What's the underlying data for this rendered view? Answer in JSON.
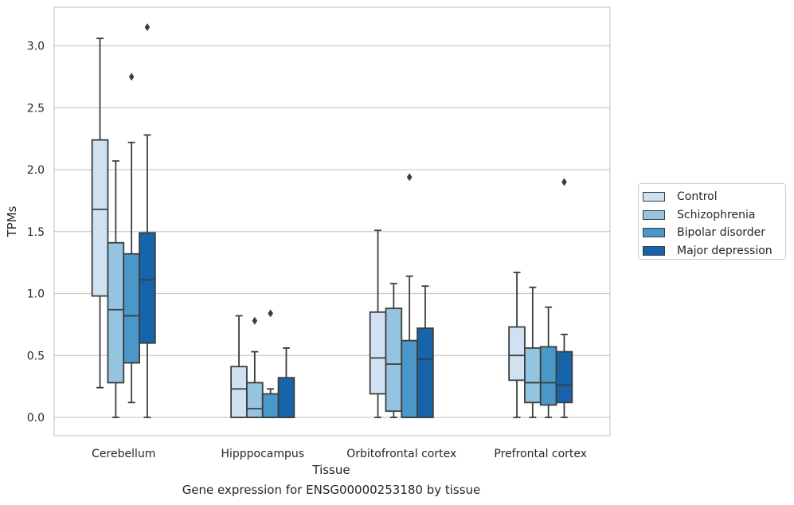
{
  "caption": "Gene expression for ENSG00000253180 by tissue",
  "chart_data": {
    "type": "box",
    "title": "",
    "xlabel": "Tissue",
    "ylabel": "TPMs",
    "ylim": [
      -0.15,
      3.3
    ],
    "yticks": [
      0.0,
      0.5,
      1.0,
      1.5,
      2.0,
      2.5,
      3.0
    ],
    "ytick_labels": [
      "0.0",
      "0.5",
      "1.0",
      "1.5",
      "2.0",
      "2.5",
      "3.0"
    ],
    "grid": "horizontal",
    "legend_position": "right",
    "categories": [
      "Cerebellum",
      "Hipppocampus",
      "Orbitofrontal cortex",
      "Prefrontal cortex"
    ],
    "series": [
      {
        "name": "Control",
        "color": "#d0e1f2",
        "boxes": [
          {
            "whisker_low": 0.24,
            "q1": 0.98,
            "median": 1.68,
            "q3": 2.24,
            "whisker_high": 3.06,
            "outliers": []
          },
          {
            "whisker_low": 0.0,
            "q1": 0.0,
            "median": 0.23,
            "q3": 0.41,
            "whisker_high": 0.82,
            "outliers": []
          },
          {
            "whisker_low": 0.0,
            "q1": 0.19,
            "median": 0.48,
            "q3": 0.85,
            "whisker_high": 1.51,
            "outliers": []
          },
          {
            "whisker_low": 0.0,
            "q1": 0.3,
            "median": 0.5,
            "q3": 0.73,
            "whisker_high": 1.17,
            "outliers": []
          }
        ]
      },
      {
        "name": "Schizophrenia",
        "color": "#94c4df",
        "boxes": [
          {
            "whisker_low": 0.0,
            "q1": 0.28,
            "median": 0.87,
            "q3": 1.41,
            "whisker_high": 2.07,
            "outliers": []
          },
          {
            "whisker_low": 0.0,
            "q1": 0.0,
            "median": 0.07,
            "q3": 0.28,
            "whisker_high": 0.53,
            "outliers": [
              0.78
            ]
          },
          {
            "whisker_low": 0.0,
            "q1": 0.05,
            "median": 0.43,
            "q3": 0.88,
            "whisker_high": 1.08,
            "outliers": []
          },
          {
            "whisker_low": 0.0,
            "q1": 0.12,
            "median": 0.28,
            "q3": 0.56,
            "whisker_high": 1.05,
            "outliers": []
          }
        ]
      },
      {
        "name": "Bipolar disorder",
        "color": "#4a98c9",
        "boxes": [
          {
            "whisker_low": 0.12,
            "q1": 0.44,
            "median": 0.82,
            "q3": 1.32,
            "whisker_high": 2.22,
            "outliers": [
              2.75
            ]
          },
          {
            "whisker_low": 0.0,
            "q1": 0.0,
            "median": 0.0,
            "q3": 0.19,
            "whisker_high": 0.23,
            "outliers": [
              0.84
            ]
          },
          {
            "whisker_low": 0.0,
            "q1": 0.0,
            "median": 0.0,
            "q3": 0.62,
            "whisker_high": 1.14,
            "outliers": [
              1.94
            ]
          },
          {
            "whisker_low": 0.0,
            "q1": 0.1,
            "median": 0.28,
            "q3": 0.57,
            "whisker_high": 0.89,
            "outliers": []
          }
        ]
      },
      {
        "name": "Major depression",
        "color": "#1764ab",
        "boxes": [
          {
            "whisker_low": 0.0,
            "q1": 0.6,
            "median": 1.11,
            "q3": 1.49,
            "whisker_high": 2.28,
            "outliers": [
              3.15
            ]
          },
          {
            "whisker_low": 0.0,
            "q1": 0.0,
            "median": 0.0,
            "q3": 0.32,
            "whisker_high": 0.56,
            "outliers": []
          },
          {
            "whisker_low": 0.0,
            "q1": 0.0,
            "median": 0.47,
            "q3": 0.72,
            "whisker_high": 1.06,
            "outliers": []
          },
          {
            "whisker_low": 0.0,
            "q1": 0.12,
            "median": 0.26,
            "q3": 0.53,
            "whisker_high": 0.67,
            "outliers": [
              1.9
            ]
          }
        ]
      }
    ]
  }
}
